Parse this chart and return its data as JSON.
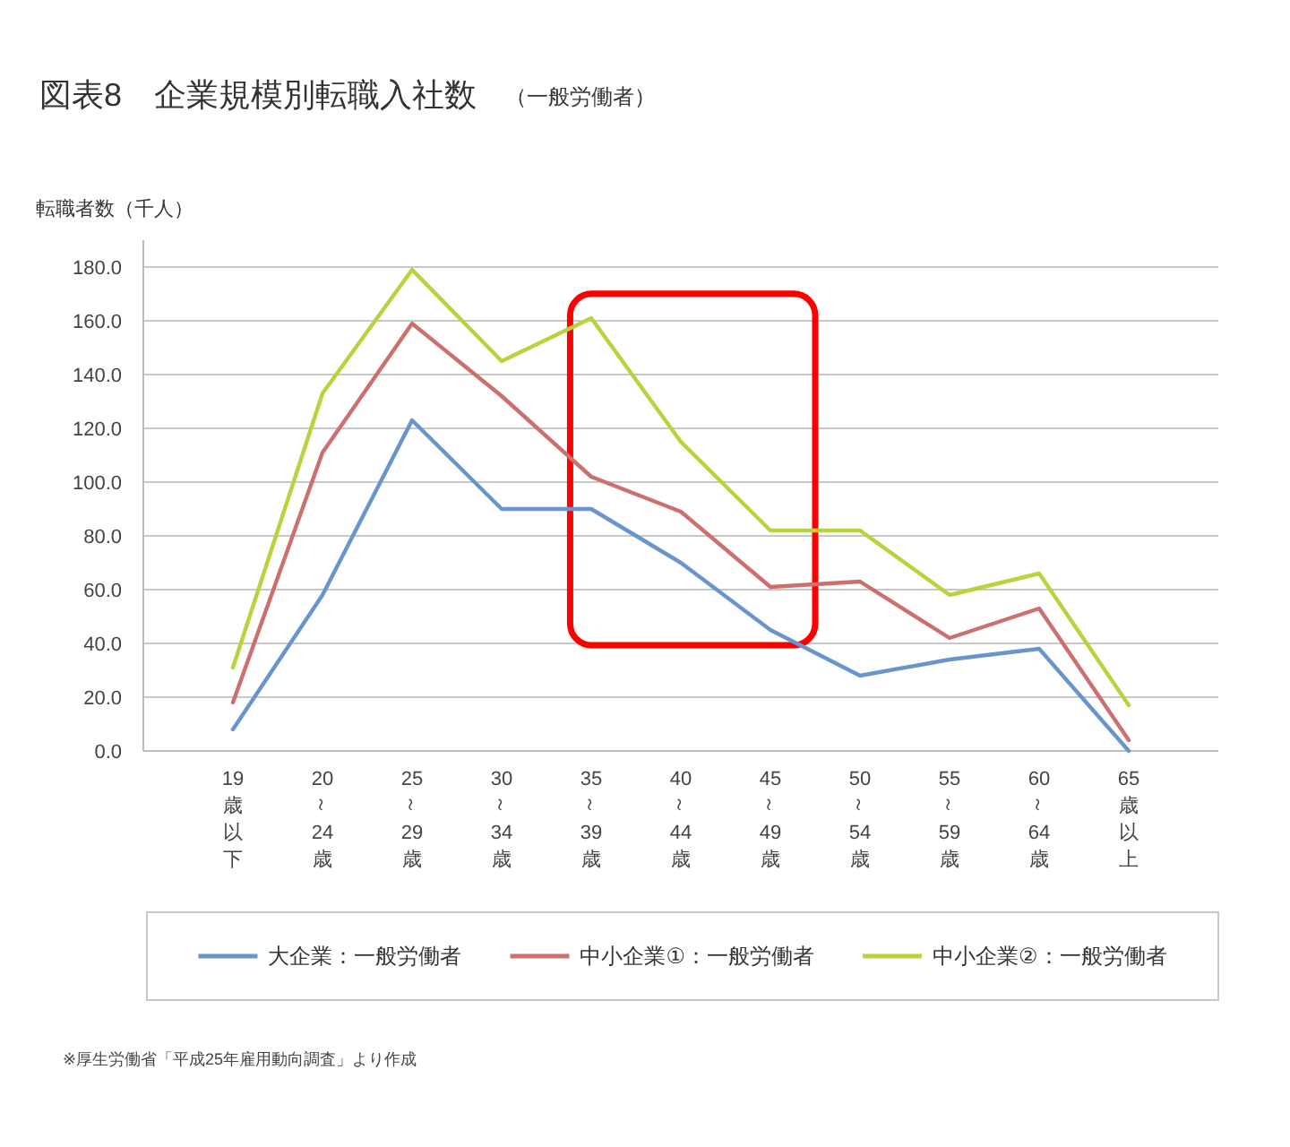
{
  "chart_data": {
    "type": "line",
    "title": "図表8　企業規模別転職入社数",
    "subtitle": "（一般労働者）",
    "ylabel": "転職者数（千人）",
    "categories": [
      "19歳以下",
      "20～24歳",
      "25～29歳",
      "30～34歳",
      "35～39歳",
      "40～44歳",
      "45～49歳",
      "50～54歳",
      "55～59歳",
      "60～64歳",
      "65歳以上"
    ],
    "series": [
      {
        "name": "大企業：一般労働者",
        "color": "#6a94cc",
        "values": [
          8,
          58,
          123,
          90,
          90,
          70,
          45,
          28,
          34,
          38,
          0
        ]
      },
      {
        "name": "中小企業①：一般労働者",
        "color": "#cd706d",
        "values": [
          18,
          111,
          159,
          132,
          102,
          89,
          61,
          63,
          42,
          53,
          4
        ]
      },
      {
        "name": "中小企業②：一般労働者",
        "color": "#b9d33c",
        "values": [
          31,
          133,
          179,
          145,
          161,
          115,
          82,
          82,
          58,
          66,
          17
        ]
      }
    ],
    "ylim": [
      0,
      190
    ],
    "yticks": [
      {
        "value": 0,
        "label": "0.0"
      },
      {
        "value": 20,
        "label": "20.0"
      },
      {
        "value": 40,
        "label": "40.0"
      },
      {
        "value": 60,
        "label": "60.0"
      },
      {
        "value": 80,
        "label": "80.0"
      },
      {
        "value": 100,
        "label": "100.0"
      },
      {
        "value": 120,
        "label": "120.0"
      },
      {
        "value": 140,
        "label": "140.0"
      },
      {
        "value": 160,
        "label": "160.0"
      },
      {
        "value": 180,
        "label": "180.0"
      }
    ],
    "grid": "y",
    "legend": "bottom",
    "annotations": [
      "※厚生労働省「平成25年雇用動向調査」より作成"
    ]
  }
}
